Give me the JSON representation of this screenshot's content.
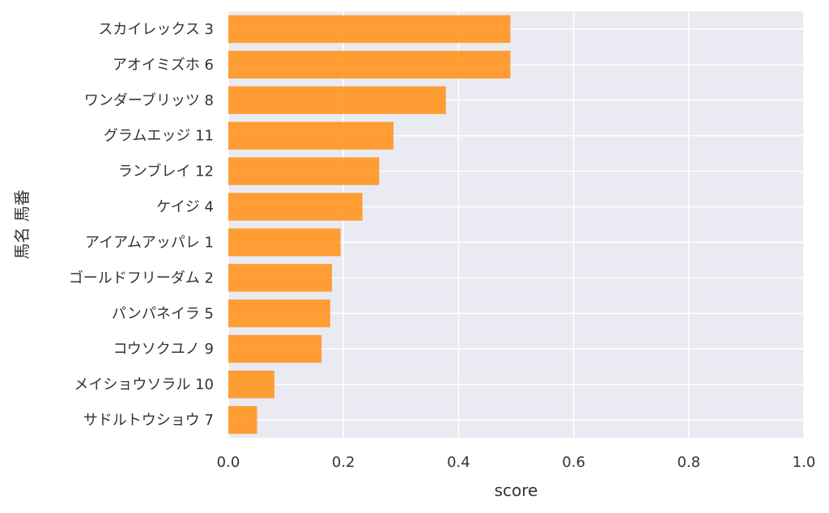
{
  "chart_data": {
    "type": "bar",
    "orientation": "horizontal",
    "categories": [
      "スカイレックス 3",
      "アオイミズホ 6",
      "ワンダーブリッツ 8",
      "グラムエッジ 11",
      "ランブレイ 12",
      "ケイジ 4",
      "アイアムアッパレ 1",
      "ゴールドフリーダム 2",
      "パンパネイラ 5",
      "コウソクユノ 9",
      "メイショウソラル 10",
      "サドルトウショウ 7"
    ],
    "values": [
      0.49,
      0.49,
      0.378,
      0.287,
      0.262,
      0.233,
      0.195,
      0.18,
      0.177,
      0.162,
      0.08,
      0.05
    ],
    "xlim": [
      0,
      1.0
    ],
    "xticks": [
      "0.0",
      "0.2",
      "0.4",
      "0.6",
      "0.8",
      "1.0"
    ],
    "xlabel": "score",
    "ylabel": "馬名 馬番",
    "grid": true,
    "bar_color": "#ff9929",
    "background_color": "#eaeaf2"
  }
}
